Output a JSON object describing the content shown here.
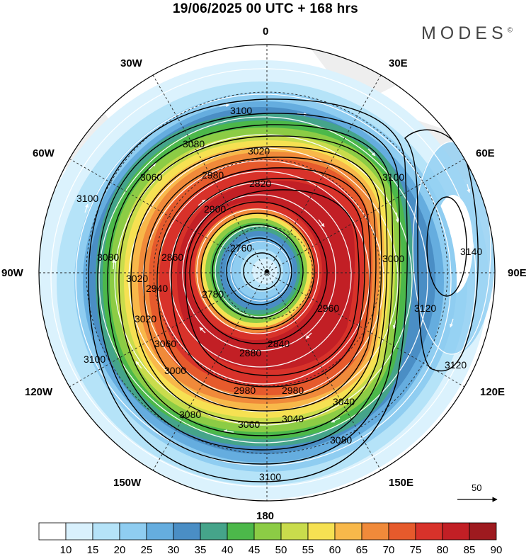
{
  "title": "19/06/2025  00 UTC  + 168 hrs",
  "brand": "MODES",
  "brand_mark": "©",
  "meridian_labels": {
    "top": "0",
    "bottom": "180",
    "left": "90W",
    "right": "90E",
    "ul30": "30W",
    "ul60": "60W",
    "ur30": "30E",
    "ur60": "60E",
    "ll120": "120W",
    "ll150": "150W",
    "lr120": "120E",
    "lr150": "150E"
  },
  "contour_labels": [
    "3100",
    "3080",
    "3060",
    "3020",
    "2980",
    "2820",
    "2900",
    "2860",
    "2760",
    "2780",
    "3080",
    "3020",
    "2940",
    "3100",
    "2880",
    "2840",
    "2980",
    "2980",
    "3040",
    "3060",
    "3080",
    "3080",
    "3100",
    "3100",
    "3140",
    "3120",
    "3120",
    "3100",
    "3040",
    "2960",
    "3000",
    "3060",
    "3020",
    "3000"
  ],
  "scale_arrow_label": "50",
  "colorbar": {
    "ticks": [
      "10",
      "15",
      "20",
      "25",
      "30",
      "35",
      "40",
      "45",
      "50",
      "55",
      "60",
      "65",
      "70",
      "75",
      "80",
      "85",
      "90"
    ],
    "colors": [
      "#ffffff",
      "#d9f1fd",
      "#b5e3f8",
      "#8fcdf1",
      "#65addf",
      "#4a8ec5",
      "#45a48a",
      "#4cb84a",
      "#8ccc45",
      "#c9dc4c",
      "#f6e152",
      "#f8b84a",
      "#f08a3a",
      "#e65a2c",
      "#d8322a",
      "#c21f25",
      "#9e1a1f"
    ]
  }
}
